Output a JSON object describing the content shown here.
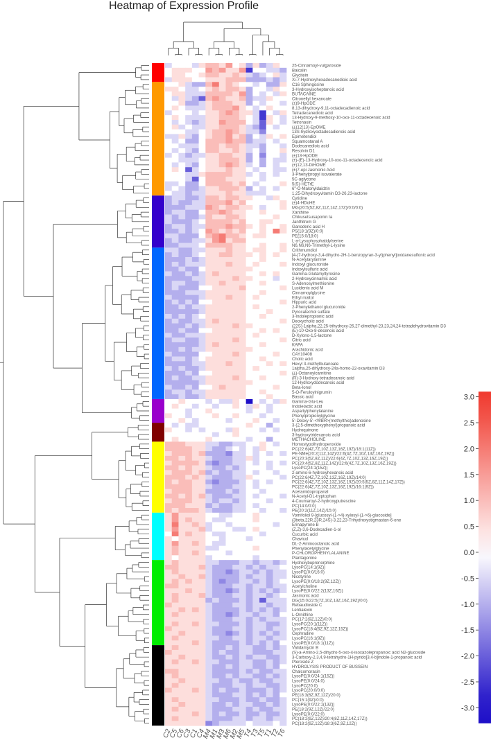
{
  "chart_data": {
    "type": "heatmap",
    "title": "Heatmap of Expression Profile",
    "columns": [
      "C2",
      "C5",
      "C6",
      "C3",
      "C1",
      "C4",
      "M4",
      "M1",
      "M3",
      "M6",
      "M2",
      "M5",
      "T4",
      "T3",
      "T5",
      "T1",
      "T2",
      "T6"
    ],
    "column_tree": [
      [
        [
          "C2",
          [
            "C5",
            "C6"
          ]
        ],
        [
          "C3",
          [
            "C1",
            "C4"
          ]
        ]
      ],
      [
        [
          [
            "M4",
            [
              "M1",
              "M3"
            ]
          ],
          [
            "M6",
            [
              "M2",
              "M5"
            ]
          ]
        ],
        [
          [
            "T4",
            "T3"
          ],
          [
            "T5",
            [
              "T1",
              [
                "T2",
                "T6"
              ]
            ]
          ]
        ]
      ]
    ],
    "row_labels": [
      "25-Cinnamoyl-vulgaroside",
      "Baicalin",
      "Glycitein",
      "Xi-7-Hydroxyhexadecanedioic acid",
      "C16 Sphingosine",
      "3-Hydroxyisoheptanoic acid",
      "BUTACAINE",
      "Citronellyl hexanoate",
      "(±)9-HpODE",
      "8,13-dihydroxy-9,11-octadecadienoic acid",
      "Tetradecanedioic acid",
      "13-Hydroxy-9-methoxy-10-oxo-11-octadecenoic acid",
      "Tetronasin",
      "(±)12(13)-EpOME",
      "13S-hydroxyoctadecadienoic acid",
      "Epimetendiol",
      "Squamostanal A",
      "Dodecanedioic acid",
      "Resolvin D1",
      "(±)13-HpODE",
      "(±)-(E)-13-Hydroxy-10-oxo-11-octadecenoic acid",
      "(±)12,13-DiHOME",
      "(±)7-epi Jasmonic Acid",
      "3-Phenylpropyl isovalerate",
      "5C-aglycone",
      "5(S)-HETrE",
      "6''-O-Malonyldaidzin",
      "1,25-Dihydroxyvitamin D3-26,23-lactone",
      "Cytidine",
      "(±)4-HDoHE",
      "MG(20:5(5Z,8Z,11Z,14Z,17Z)/0:0/0:0)",
      "Xanthine",
      "Chikusetsusaponin Ia",
      "Janthitrem G",
      "Ganoderic acid H",
      "PS(18:1(9Z)/0:0)",
      "PE(15:0/18:0)",
      "L-a-Lysophosphatidylserine",
      "N6,N6,N6-Trimethyl-L-lysine",
      "Crithmumdiol",
      "[4-(7-hydroxy-3,4-dihydro-2H-1-benzopyran-3-yl)phenyl]oxidanesulfonic acid",
      "N-Acetylarylamine",
      "Indoxyl glucuronide",
      "Indoxylsulfuric acid",
      "Gamma-Glutamyltyrosine",
      "2-Hydroxycinnamic acid",
      "S-Adenosylmethionine",
      "Lucidenic acid M",
      "Cinnamoylglycine",
      "Ethyl maltol",
      "Hippuric acid",
      "2-Phenylethanol glucuronide",
      "Pyrocatechol sulfate",
      "3-Indolepropionic acid",
      "Deoxycholic acid",
      "(22S)-1alpha,22,25-trihydroxy-26,27-dimethyl-23,23,24,24-tetradehydrovitamin D3",
      "(E)-10-Oxo-8-decenoic acid",
      "D-Xylono-1,5-lactone",
      "Citric acid",
      "KAPA",
      "Arachidonic acid",
      "CAY10408",
      "Cholic acid",
      "Hexyl 3-methylbutanoate",
      "1alpha,25-dihydroxy-24a-homo-22-oxavitamin D3",
      "(±)-Octanoylcarnitine",
      "(R)-3-Hydroxy-tetradecanoic acid",
      "12-Hydroxydodecanoic acid",
      "Beta-Ionol",
      "5-O-Feruloylnigrumin",
      "Bassic acid",
      "Gamma-Glu-Leu",
      "Indolelactic acid",
      "Aspartylphenylalanine",
      "Phenylpropionylglycine",
      "5'-Deoxy-5'-<WBR>(methylthio)adenosine",
      "3-(2,5-dimethoxyphenyl)propanoic acid",
      "Hydroquinone",
      "3-hydroxytridecanoic acid",
      "METHACHOLINE",
      "Homostypolhydroperoxide",
      "PC(22:6(4Z,7Z,10Z,13Z,16Z,19Z)/18:1(11Z))",
      "PE-NMe(20:2(11Z,14Z)/22:6(4Z,7Z,10Z,13Z,16Z,19Z))",
      "PC(20:3(5Z,8Z,11Z)/22:6(4Z,7Z,10Z,13Z,16Z,19Z))",
      "PC(20:4(5Z,8Z,11Z,14Z)/22:6(4Z,7Z,10Z,13Z,16Z,19Z))",
      "LysoPC(24:1(15Z))",
      "2-amino-6-hydroxyhexanoic acid",
      "PC(22:6(4Z,7Z,10Z,13Z,16Z,19Z)/14:0)",
      "PC(22:6(4Z,7Z,10Z,13Z,16Z,19Z)/20:5(5Z,8Z,11Z,14Z,17Z))",
      "PC(22:6(4Z,7Z,10Z,13Z,16Z,19Z)/16:1(9Z))",
      "Acetamidopropanal",
      "N-Acetyl-DL-tryptophan",
      "4-Coumaroyl-2-hydroxyputrescine",
      "PC(14:0/0:0)",
      "PE(20:2(11Z,14Z)/15:0)",
      "Vomifoliol 9-[glucosyl-(1->4)-xylosyl-(1->6)-glucoside]",
      "(3beta,22R,23R,24S)-3,22,23-Trihydroxystigmastan-6-one",
      "Erinapyrone B",
      "(Z,Z)-3,6-Dodecadien-1-ol",
      "Cucurbic acid",
      "Chavicol",
      "DL-2-Aminooctanoic acid",
      "Phenylacetylglycine",
      "P-CHLOROPHENYLALANINE",
      "Plantagonine",
      "Hydroxybuprenorphine",
      "LysoPC(14:1(9Z))",
      "LysoPE(0:0/16:0)",
      "Nicotyrine",
      "LysoPE(0:0/18:2(9Z,12Z))",
      "Acetylcholine",
      "LysoPE(0:0/22:2(13Z,16Z))",
      "Jasmonic acid",
      "DG(15:0/22:5(7Z,10Z,13Z,16Z,19Z)/0:0)",
      "Rebaudioside C",
      "Lentialexin",
      "L-Ornithine",
      "PC(17:2(9Z,12Z)/0:0)",
      "LysoPC(20:1(11Z))",
      "LysoPC(18:4(6Z,9Z,12Z,15Z))",
      "Cephradine",
      "LysoPC(16:1(9Z))",
      "LysoPE(0:0/18:1(11Z))",
      "Validamycin B",
      "(S)-a-Amino-2,5-dihydro-5-oxo-4-isoxazolepropanoic acid N2-glucoside",
      "3-Carboxy-2,3,4,9-tetrahydro-1H-pyrido[3,4-b]indole-1-propanoic acid",
      "Pteroside Z",
      "HYDROLYSIS PRODUCT OF BUSSEIN",
      "Chalcomoracin",
      "LysoPE(0:0/24:1(15Z))",
      "LysoPE(0:0/24:0)",
      "LysoPC(20:0)",
      "LysoPC(20:0/0:0)",
      "PE(18:3(6Z,9Z,12Z)/20:0)",
      "PC(15:1(9Z)/0:0)",
      "LysoPE(0:0/22:1(13Z))",
      "PE(18:2(9Z,12Z)/22:0)",
      "LysoPE(0:0/22:0)",
      "PC(18:2(9Z,12Z)/20:4(8Z,11Z,14Z,17Z))",
      "PC(18:2(9Z,12Z)/18:3(6Z,9Z,12Z))"
    ],
    "row_clusters": [
      {
        "color": "#ff0000",
        "start": 0,
        "end": 3
      },
      {
        "color": "#ff9900",
        "start": 4,
        "end": 27
      },
      {
        "color": "#3300cc",
        "start": 28,
        "end": 38
      },
      {
        "color": "#0066ff",
        "start": 39,
        "end": 70
      },
      {
        "color": "#9900cc",
        "start": 71,
        "end": 75
      },
      {
        "color": "#800000",
        "start": 76,
        "end": 79
      },
      {
        "color": "#ffff00",
        "start": 80,
        "end": 94
      },
      {
        "color": "#00ffff",
        "start": 95,
        "end": 104
      },
      {
        "color": "#00ee00",
        "start": 105,
        "end": 122
      },
      {
        "color": "#000000",
        "start": 123,
        "end": 139
      }
    ],
    "value_levels": {
      "a": -3,
      "b": -2.5,
      "c": -2,
      "d": -1.5,
      "e": -1,
      "f": -0.5,
      "g": 0,
      "h": 0.5,
      "i": 1,
      "j": 1.5,
      "k": 2,
      "l": 2.5,
      "m": 3
    },
    "values": [
      "fgggfhiihjghehefhg",
      "ghhhggjijhhjbggffe",
      "ghhgghiihhihfefghf",
      "fhhhgghhhiiieeefef",
      "gghfeeikhihggfgeeh",
      "hhgffghihiiheggfhg",
      "ghhfffiiiihjegfgfh",
      "gfhfecijihhieffhgg",
      "ggheefhiiihhegfggf",
      "ghgfffhiiijhgfghgg",
      "fgggfghhijihhfbgfh",
      "ghgfffhhiiihgfbhgf",
      "gfgfefhhjiiigfchgf",
      "ghfgffhhiiihfecgfg",
      "gggffghiijihffdggg",
      "ffhfeghiijhiegfhgh",
      "gfgeegiiijiieffgfg",
      "ggfffgiihiihffeggf",
      "gfgfegiihhihfgeggh",
      "fgfeffhhiihhegdggf",
      "ggfffghhiiihegegff",
      "gfgfeghhijihfgegfg",
      "ghgcfghhhihhgfggff",
      "gggffhiiiihhfgfgfg",
      "gggfcgiiihhhggfggg",
      "ffgeegiiiihigfgggh",
      "fgfeefhhiiihegfgfg",
      "gffeffhhhihhfffggg",
      "effeefiihiihhggfhg",
      "efeeffiiijhigggggh",
      "eeefffjihiihhgfggh",
      "effeegiijihhgghggg",
      "fefeefihhiihgggghg",
      "feeefgiiiihigghhgg",
      "effeffiiijiihghggh",
      "eefefgjihihigghgkh",
      "ffeeegijkiihghhggg",
      "efeeffhjkhiigggggg",
      "eefffgiiiihhgghggh",
      "ffeeffhhhihhghhggh",
      "efeefghhiihhhghghg",
      "eeefefhhhhhhgghggg",
      "efefffhhhihhghgggh",
      "eefeeghhhhhhhggggg",
      "feefefhihhhhgghghg",
      "eeeeffhhhhihhgggfg",
      "effeefhhihhhgghggg",
      "efeeegghhhhigggggh",
      "eeefffhhhhhhgghggg",
      "feeeefhhhihhghgggg",
      "efefegghhhhhgggggh",
      "eefeffhhhhhhghgggg",
      "eeeeefhhhhhhggghgg",
      "fefefghhhhhhgghggg",
      "efeeffhihhhhgggggh",
      "eeefefhhhhihhggggg",
      "eefeegghhhhhgghghg",
      "feefffhhhhhhghgggg",
      "effeefhhhhihgggggh",
      "eeeeefhihhhhgghggg",
      "eefeffhhhhhhhggggg",
      "feeeegghhhihgggghg",
      "effefghhhhhhgghggg",
      "eeeeffhhhihhggghgh",
      "fefeefhhhhhhghgggg",
      "eeefegghhhhhgggggh",
      "efeeffhhhhihgghggg",
      "eeeeefhhhhhhhggggg",
      "feefegghihhhgggghg",
      "effeffhhhhhhgghggg",
      "eefeefhhhhhhggghgg",
      "gghgggfgffhgagfgfh",
      "ghggfggfgghgfhgfgg",
      "gggfgghgggggfggfgg",
      "hggfggghgghgggfggg",
      "gghgfggggfggghggfg",
      "gfgffggggggghggegg",
      "hggfgfgggfhgggfgfg",
      "gggggggfgghggggggg",
      "ghgggghgggggfggegg",
      "iiihhhffeeffgghgfg",
      "iiiihhfeefgfgfhggg",
      "hiiihieeedffgfgfgf",
      "iihihhfeeeffhfgggg",
      "hiiiihedeeffgfgfgf",
      "iihihhfeefefgggfgg",
      "hiiihiefeeffgfggfg",
      "iiihihfeeeffhggggf",
      "ihiihhedeeefgfgfgg",
      "iiiihhfeeeffgfgggg",
      "hiiihheeefefggfggg",
      "iihihifeeeffgfgggf",
      "hiiihhfeffefgggfgg",
      "iiihhhefeeffgfgggg",
      "ihiiihfeeeffggfggf",
      "hjhhhhggffggghgggg",
      "hjhihhgffgggghgggg",
      "hkhhihfggfggggggfg",
      "hjhhhifgggffghgggg",
      "gkhihhgffgggggfggg",
      "hghhhhggfgggfggggg",
      "hjhhihgffggggggggg",
      "hihhhhffggggghgggg",
      "hihhihgggfgggggggg",
      "hghhhhfggggggfgggg",
      "hihhhhffeeeffeffef",
      "iihhhifeeeffefeffg",
      "hihhhhfeedeffefeff",
      "hhihhifeeeefeffeff",
      "hihihhfedeeffefefg",
      "iihhhhfeeeffeffeff",
      "hhhihhfeedefefefef",
      "hihhhifeeeffeffefg",
      "hihhhhefeeefefcfff",
      "ihhhhhfeeeffeffeff",
      "hhihihfeeeefefefef",
      "hihhhhfeedeffeffeg",
      "hhhhhhfeeeffefefff",
      "hihhihffeeefeffeef",
      "ihhhhhfeeeffeffeff",
      "hhihhhfeedefefefef",
      "hihhhhffeeffeffeff",
      "hhhhihfeeeefefefeg",
      "hihhhhfeefeffeefef",
      "ihhhhhfefeeffeeeff",
      "hhihhhfeefefeffeef",
      "hihhihffeeeffeefef",
      "hhhhhhfeefeffeefeg",
      "iihhhhfeeeefefeeff",
      "hihhhhfeefeffeefef",
      "hhihhhffeefeefeeff",
      "hihhhhfeeeffeffeef",
      "ihhhihfefeefeeefef",
      "hhhhhhfeeeffefefeg",
      "hihhhhffeeefeefeef",
      "hhihhhfeefeffeefef",
      "hihhhhfeeeffefeeff",
      "hhhhihfefeefeefeef",
      "hihhhhfeeeffeffeff",
      "hhhhhhdeffffgfffgf"
    ],
    "color_scale": {
      "min": -3.3,
      "max": 3.1,
      "low_color": "#1e0fc8",
      "mid_color": "#ffffff",
      "high_color": "#f0392e"
    },
    "legend_ticks": [
      "3.0",
      "2.5",
      "2.0",
      "1.5",
      "1.0",
      "0.5",
      "0.0",
      "-0.5",
      "-1.0",
      "-1.5",
      "-2.0",
      "-2.5",
      "-3.0"
    ],
    "legend_tick_values": [
      3.0,
      2.5,
      2.0,
      1.5,
      1.0,
      0.5,
      0.0,
      -0.5,
      -1.0,
      -1.5,
      -2.0,
      -2.5,
      -3.0
    ],
    "legend_placement": "right"
  }
}
